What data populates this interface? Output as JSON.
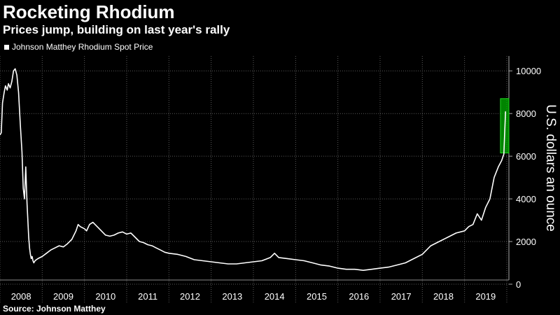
{
  "title": "Rocketing Rhodium",
  "subtitle": "Prices jump, building on last year's rally",
  "source": "Source: Johnson Matthey",
  "colors": {
    "background": "#000000",
    "line": "#ffffff",
    "grid": "#5a5a5a",
    "highlight": "#00b000"
  },
  "chart_data": {
    "type": "line",
    "title": "Rocketing Rhodium",
    "subtitle": "Prices jump, building on last year's rally",
    "ylabel": "U.S. dollars an ounce",
    "ylim": [
      0,
      10500
    ],
    "yticks": [
      0,
      2000,
      4000,
      6000,
      8000,
      10000
    ],
    "xlim": [
      2008.0,
      2020.05
    ],
    "xtick_labels": [
      "2008",
      "2009",
      "2010",
      "2011",
      "2012",
      "2013",
      "2014",
      "2015",
      "2016",
      "2017",
      "2018",
      "2019"
    ],
    "grid": true,
    "legend": "top-left",
    "highlight_box": {
      "x": [
        2019.85,
        2020.05
      ],
      "y": [
        6150,
        8700
      ]
    },
    "series": [
      {
        "name": "Johnson Matthey Rhodium Spot Price",
        "x": [
          2008.0,
          2008.03,
          2008.06,
          2008.1,
          2008.13,
          2008.17,
          2008.2,
          2008.24,
          2008.28,
          2008.32,
          2008.36,
          2008.4,
          2008.44,
          2008.48,
          2008.52,
          2008.55,
          2008.58,
          2008.61,
          2008.64,
          2008.66,
          2008.68,
          2008.7,
          2008.72,
          2008.74,
          2008.76,
          2008.78,
          2008.8,
          2008.83,
          2008.86,
          2008.9,
          2008.95,
          2009.0,
          2009.1,
          2009.2,
          2009.3,
          2009.4,
          2009.5,
          2009.6,
          2009.7,
          2009.8,
          2009.85,
          2009.9,
          2010.0,
          2010.05,
          2010.12,
          2010.2,
          2010.3,
          2010.4,
          2010.5,
          2010.6,
          2010.7,
          2010.8,
          2010.9,
          2011.0,
          2011.1,
          2011.2,
          2011.3,
          2011.4,
          2011.5,
          2011.6,
          2011.7,
          2011.8,
          2011.9,
          2012.0,
          2012.2,
          2012.4,
          2012.6,
          2012.8,
          2013.0,
          2013.2,
          2013.4,
          2013.6,
          2013.8,
          2014.0,
          2014.2,
          2014.4,
          2014.5,
          2014.6,
          2014.8,
          2015.0,
          2015.2,
          2015.4,
          2015.6,
          2015.8,
          2016.0,
          2016.2,
          2016.4,
          2016.6,
          2016.8,
          2017.0,
          2017.2,
          2017.4,
          2017.6,
          2017.8,
          2018.0,
          2018.2,
          2018.4,
          2018.6,
          2018.8,
          2019.0,
          2019.1,
          2019.2,
          2019.3,
          2019.4,
          2019.5,
          2019.6,
          2019.7,
          2019.8,
          2019.88,
          2019.93,
          2019.97
        ],
        "values": [
          7000,
          7100,
          8500,
          9000,
          9300,
          9100,
          9400,
          9200,
          9500,
          10000,
          10100,
          9800,
          9000,
          7500,
          6200,
          4500,
          4000,
          5500,
          3800,
          3000,
          2200,
          1700,
          1400,
          1200,
          1300,
          1100,
          1000,
          1100,
          1150,
          1200,
          1250,
          1300,
          1450,
          1600,
          1700,
          1800,
          1750,
          1900,
          2100,
          2500,
          2800,
          2700,
          2600,
          2500,
          2800,
          2900,
          2700,
          2500,
          2300,
          2250,
          2300,
          2400,
          2450,
          2350,
          2400,
          2200,
          2000,
          1950,
          1850,
          1800,
          1700,
          1600,
          1500,
          1450,
          1400,
          1300,
          1150,
          1100,
          1050,
          1000,
          950,
          950,
          1000,
          1050,
          1100,
          1250,
          1450,
          1250,
          1200,
          1150,
          1100,
          1000,
          900,
          850,
          750,
          700,
          700,
          650,
          700,
          750,
          800,
          900,
          1000,
          1200,
          1400,
          1800,
          2000,
          2200,
          2400,
          2500,
          2700,
          2800,
          3300,
          3000,
          3600,
          4000,
          5000,
          5500,
          5800,
          6100,
          8100
        ]
      }
    ]
  }
}
